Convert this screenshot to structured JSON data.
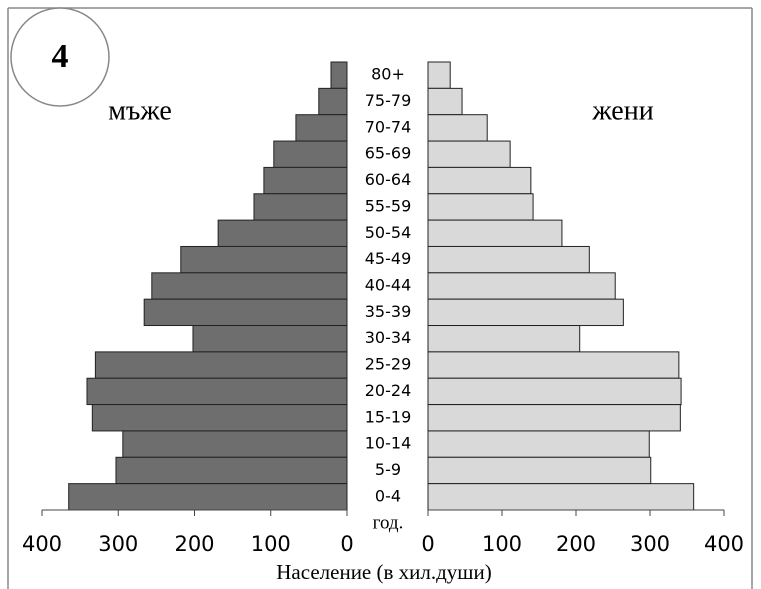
{
  "chart_data": {
    "type": "pyramid",
    "badge": "4",
    "xlabel": "Население (в хил.души)",
    "category_label": "год.",
    "categories": [
      "80+",
      "75-79",
      "70-74",
      "65-69",
      "60-64",
      "55-59",
      "50-54",
      "45-49",
      "40-44",
      "35-39",
      "30-34",
      "25-29",
      "20-24",
      "15-19",
      "10-14",
      "5-9",
      "0-4"
    ],
    "series": [
      {
        "name": "мъже",
        "color": "#6e6e6e",
        "values": [
          21,
          37,
          67,
          96,
          109,
          122,
          169,
          218,
          256,
          266,
          202,
          330,
          341,
          334,
          294,
          303,
          365
        ]
      },
      {
        "name": "жени",
        "color": "#d9d9d9",
        "values": [
          30,
          46,
          80,
          111,
          139,
          142,
          181,
          218,
          253,
          264,
          205,
          339,
          342,
          341,
          299,
          301,
          359
        ]
      }
    ],
    "xlim": [
      0,
      400
    ],
    "xticks": [
      0,
      100,
      200,
      300,
      400
    ]
  }
}
